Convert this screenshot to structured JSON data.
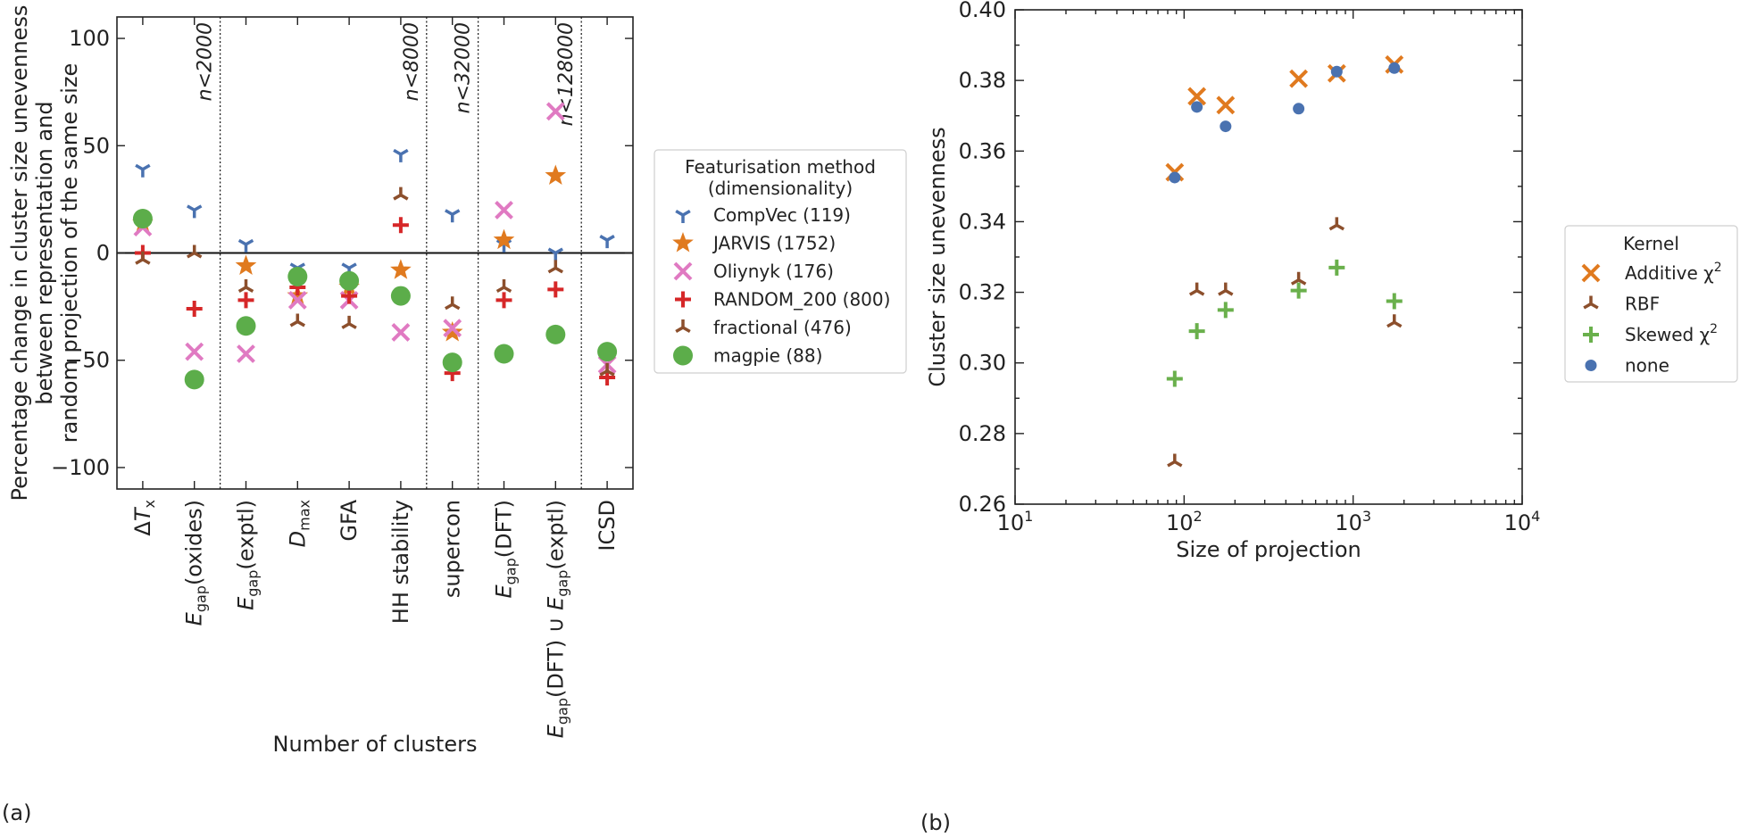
{
  "chart_data": [
    {
      "panel_label": "(a)",
      "type": "scatter",
      "title": "",
      "xlabel": "Number of clusters",
      "ylabel_lines": [
        "Percentage change in cluster size unevenness",
        "between representation and",
        "random projection of the same size"
      ],
      "ylim": [
        -110,
        110
      ],
      "yticks": [
        -100,
        -50,
        0,
        50,
        100
      ],
      "ytick_labels": [
        "−100",
        "−50",
        "0",
        "50",
        "100"
      ],
      "categories": [
        {
          "pre": "Δ",
          "it": "T",
          "sub": "x",
          "post": "",
          "sub_it": false
        },
        {
          "pre": "",
          "it": "E",
          "sub": "gap",
          "post": "(oxides)"
        },
        {
          "pre": "",
          "it": "E",
          "sub": "gap",
          "post": "(exptl)"
        },
        {
          "pre": "",
          "it": "D",
          "sub": "max",
          "post": ""
        },
        {
          "pre": "GFA",
          "it": "",
          "sub": "",
          "post": ""
        },
        {
          "pre": "HH stability",
          "it": "",
          "sub": "",
          "post": ""
        },
        {
          "pre": "supercon",
          "it": "",
          "sub": "",
          "post": ""
        },
        {
          "pre": "",
          "it": "E",
          "sub": "gap",
          "post": "(DFT)"
        },
        {
          "pre": "",
          "it": "E",
          "sub": "gap",
          "post": "(DFT) ∪ ",
          "it2": "E",
          "sub2": "gap",
          "post2": "(exptl)"
        },
        {
          "pre": "ICSD",
          "it": "",
          "sub": "",
          "post": ""
        }
      ],
      "regions": [
        {
          "after_index": 1.5,
          "label": "n<2000"
        },
        {
          "after_index": 5.5,
          "label": "n<8000"
        },
        {
          "after_index": 6.5,
          "label": "n<32000"
        },
        {
          "after_index": 8.5,
          "label": "n<128000"
        }
      ],
      "legend": {
        "title_lines": [
          "Featurisation method",
          "(dimensionality)"
        ],
        "location": "outside-right"
      },
      "series": [
        {
          "name": "CompVec (119)",
          "marker": "tri_down",
          "color": "#4a72b0",
          "values": [
            39,
            20,
            4,
            -7,
            -7,
            46,
            18,
            4,
            0,
            6
          ]
        },
        {
          "name": "JARVIS (1752)",
          "marker": "star",
          "color": "#e07a1f",
          "values": [
            14,
            null,
            -6,
            -20,
            -16,
            -8,
            -37,
            6,
            36,
            null
          ]
        },
        {
          "name": "Oliynyk (176)",
          "marker": "x",
          "color": "#e07ac2",
          "values": [
            12,
            -46,
            -47,
            -22,
            -22,
            -37,
            -35,
            20,
            66,
            -52
          ]
        },
        {
          "name": "RANDOM_200 (800)",
          "marker": "plus",
          "color": "#d62728",
          "values": [
            0,
            -26,
            -22,
            -16,
            -20,
            13,
            -56,
            -22,
            -17,
            -58
          ]
        },
        {
          "name": "fractional (476)",
          "marker": "tri_up",
          "color": "#8c4f2c",
          "values": [
            -3,
            0,
            -16,
            -32,
            -33,
            27,
            -24,
            -16,
            -7,
            -55
          ]
        },
        {
          "name": "magpie (88)",
          "marker": "circle_big",
          "color": "#5cad4a",
          "values": [
            16,
            -59,
            -34,
            -11,
            -13,
            -20,
            -51,
            -47,
            -38,
            -46
          ]
        }
      ]
    },
    {
      "panel_label": "(b)",
      "type": "scatter",
      "title": "",
      "xlabel": "Size of projection",
      "ylabel": "Cluster size unevenness",
      "xscale": "log",
      "xlim": [
        10,
        10000
      ],
      "ylim": [
        0.26,
        0.4
      ],
      "yticks": [
        0.26,
        0.28,
        0.3,
        0.32,
        0.34,
        0.36,
        0.38,
        0.4
      ],
      "ytick_labels": [
        "0.26",
        "0.28",
        "0.30",
        "0.32",
        "0.34",
        "0.36",
        "0.38",
        "0.40"
      ],
      "xticks": [
        10,
        100,
        1000,
        10000
      ],
      "xtick_labels": [
        {
          "base": "10",
          "exp": "1"
        },
        {
          "base": "10",
          "exp": "2"
        },
        {
          "base": "10",
          "exp": "3"
        },
        {
          "base": "10",
          "exp": "4"
        }
      ],
      "legend": {
        "title": "Kernel",
        "location": "outside-right"
      },
      "series": [
        {
          "name": "Additive χ",
          "name_sup": "2",
          "marker": "x",
          "color": "#e07a1f",
          "x": [
            88,
            119,
            176,
            476,
            800,
            1752
          ],
          "y": [
            0.354,
            0.3755,
            0.373,
            0.3805,
            0.382,
            0.3845
          ]
        },
        {
          "name": "RBF",
          "name_sup": "",
          "marker": "tri_up",
          "color": "#8c4f2c",
          "x": [
            88,
            119,
            176,
            476,
            800,
            1752
          ],
          "y": [
            0.272,
            0.3205,
            0.3205,
            0.3235,
            0.339,
            0.3115
          ]
        },
        {
          "name": "Skewed χ",
          "name_sup": "2",
          "marker": "plus",
          "color": "#6ab04c",
          "x": [
            88,
            119,
            176,
            476,
            800,
            1752
          ],
          "y": [
            0.2955,
            0.309,
            0.315,
            0.3205,
            0.327,
            0.3175
          ]
        },
        {
          "name": "none",
          "name_sup": "",
          "marker": "dot",
          "color": "#4a72b0",
          "x": [
            88,
            119,
            176,
            476,
            800,
            1752
          ],
          "y": [
            0.3525,
            0.3725,
            0.367,
            0.372,
            0.3825,
            0.3835
          ]
        }
      ]
    }
  ]
}
